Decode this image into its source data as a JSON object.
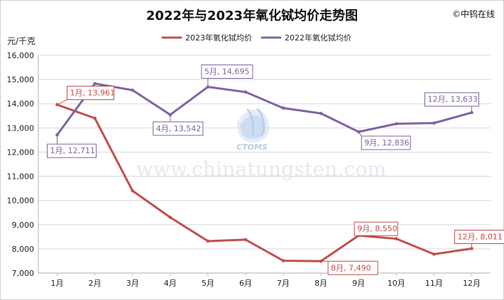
{
  "header": {
    "title": "2022年与2023年氧化铽均价走势图",
    "copyright": "©中钨在线"
  },
  "y_axis": {
    "label": "元/千克"
  },
  "watermark": {
    "logo_text": "CTOMS",
    "site": "www.chinatungsten.com"
  },
  "colors": {
    "series_2023": "#c0504d",
    "series_2022": "#8064a2",
    "grid": "#d9d9d9",
    "axis": "#bfbfbf",
    "logo": "#8fb0e0"
  },
  "chart_data": {
    "type": "line",
    "title": "2022年与2023年氧化铽均价走势图",
    "ylabel": "元/千克",
    "categories": [
      "1月",
      "2月",
      "3月",
      "4月",
      "5月",
      "6月",
      "7月",
      "8月",
      "9月",
      "10月",
      "11月",
      "12月"
    ],
    "ylim": [
      7000,
      16000
    ],
    "yticks": [
      "7,000",
      "8,000",
      "9,000",
      "10,000",
      "11,000",
      "12,000",
      "13,000",
      "14,000",
      "15,000",
      "16,000"
    ],
    "grid": true,
    "legend_position": "top",
    "series": [
      {
        "name": "2023年氧化铽均价",
        "color": "#c0504d",
        "values": [
          13961,
          13400,
          10400,
          9300,
          8320,
          8380,
          7510,
          7490,
          8550,
          8420,
          7780,
          8011
        ],
        "labels": [
          {
            "index": 0,
            "text": "1月, 13,961"
          },
          {
            "index": 7,
            "text": "8月, 7,490"
          },
          {
            "index": 8,
            "text": "9月, 8,550"
          },
          {
            "index": 11,
            "text": "12月, 8,011"
          }
        ]
      },
      {
        "name": "2022年氧化铽均价",
        "color": "#8064a2",
        "values": [
          12711,
          14830,
          14560,
          13542,
          14695,
          14480,
          13820,
          13600,
          12836,
          13170,
          13200,
          13633
        ],
        "labels": [
          {
            "index": 0,
            "text": "1月, 12,711"
          },
          {
            "index": 3,
            "text": "4月, 13,542"
          },
          {
            "index": 4,
            "text": "5月, 14,695"
          },
          {
            "index": 8,
            "text": "9月, 12,836"
          },
          {
            "index": 11,
            "text": "12月, 13,633"
          }
        ]
      }
    ]
  }
}
